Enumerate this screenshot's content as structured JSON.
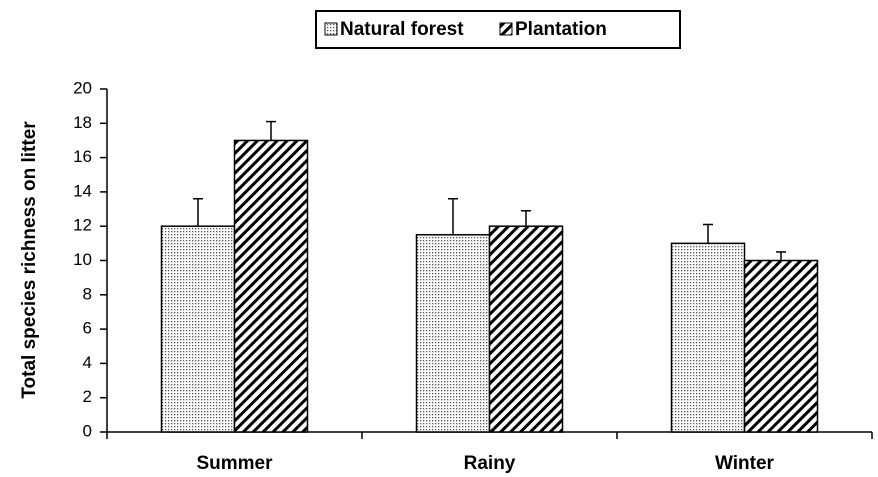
{
  "chart_data": {
    "type": "bar",
    "y_label": "Total species richness on litter",
    "categories": [
      "Summer",
      "Rainy",
      "Winter"
    ],
    "series": [
      {
        "name": "Natural forest",
        "color": "#000000",
        "pattern": "dots",
        "values": [
          12,
          11.5,
          11
        ],
        "errors": [
          1.6,
          2.1,
          1.1
        ]
      },
      {
        "name": "Plantation",
        "color": "#000000",
        "pattern": "hatch",
        "values": [
          17,
          12,
          10
        ],
        "errors": [
          1.1,
          0.9,
          0.5
        ]
      }
    ],
    "ylim": [
      0,
      20
    ],
    "yticks": [
      0,
      2,
      4,
      6,
      8,
      10,
      12,
      14,
      16,
      18,
      20
    ],
    "grid": false,
    "legend": "top"
  }
}
